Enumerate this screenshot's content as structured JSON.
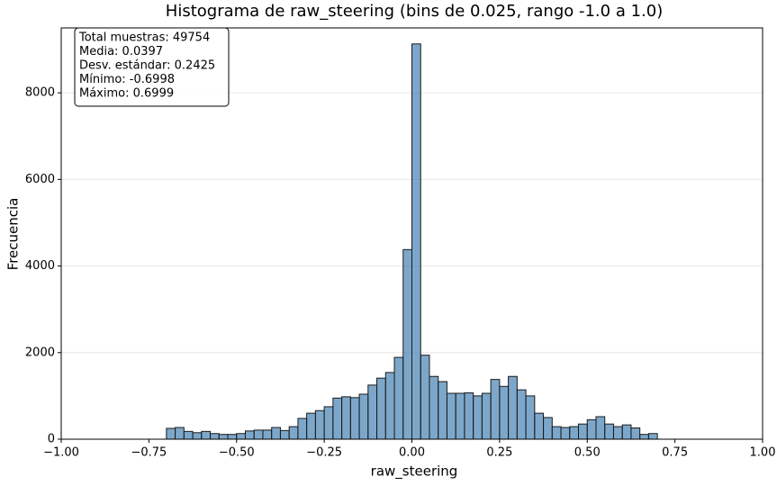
{
  "chart_data": {
    "type": "histogram",
    "title": "Histograma de raw_steering (bins de 0.025, rango -1.0 a 1.0)",
    "xlabel": "raw_steering",
    "ylabel": "Frecuencia",
    "stats": [
      "Total muestras: 49754",
      "Media: 0.0397",
      "Desv. estándar: 0.2425",
      "Mínimo: -0.6998",
      "Máximo: 0.6999"
    ],
    "bins": [
      -0.7,
      -0.675,
      -0.65,
      -0.625,
      -0.6,
      -0.575,
      -0.55,
      -0.525,
      -0.5,
      -0.475,
      -0.45,
      -0.425,
      -0.4,
      -0.375,
      -0.35,
      -0.325,
      -0.3,
      -0.275,
      -0.25,
      -0.225,
      -0.2,
      -0.175,
      -0.15,
      -0.125,
      -0.1,
      -0.075,
      -0.05,
      -0.025,
      0,
      0.025,
      0.05,
      0.075,
      0.1,
      0.125,
      0.15,
      0.175,
      0.2,
      0.225,
      0.25,
      0.275,
      0.3,
      0.325,
      0.35,
      0.375,
      0.4,
      0.425,
      0.45,
      0.475,
      0.5,
      0.525,
      0.55,
      0.575,
      0.6,
      0.625,
      0.65,
      0.675,
      0.7
    ],
    "counts": [
      250,
      270,
      180,
      150,
      180,
      130,
      110,
      110,
      130,
      190,
      210,
      210,
      270,
      200,
      290,
      480,
      600,
      660,
      750,
      950,
      980,
      960,
      1040,
      1250,
      1410,
      1540,
      1890,
      4380,
      9130,
      1940,
      1450,
      1330,
      1060,
      1060,
      1070,
      1000,
      1060,
      1380,
      1220,
      1450,
      1140,
      1000,
      600,
      500,
      290,
      270,
      290,
      350,
      450,
      520,
      350,
      290,
      330,
      260,
      110,
      130
    ],
    "color": "#4682b4",
    "edgecolor": "#1a1a1a",
    "xlim": [
      -1.0,
      1.0
    ],
    "xticks": [
      {
        "value": -1.0,
        "label": "−1.00"
      },
      {
        "value": -0.75,
        "label": "−0.75"
      },
      {
        "value": -0.5,
        "label": "−0.50"
      },
      {
        "value": -0.25,
        "label": "−0.25"
      },
      {
        "value": 0,
        "label": "0.00"
      },
      {
        "value": 0.25,
        "label": "0.25"
      },
      {
        "value": 0.5,
        "label": "0.50"
      },
      {
        "value": 0.75,
        "label": "0.75"
      },
      {
        "value": 1.0,
        "label": "1.00"
      }
    ],
    "ylim": [
      0,
      9500
    ],
    "yticks": [
      0,
      2000,
      4000,
      6000,
      8000
    ],
    "grid": true
  }
}
